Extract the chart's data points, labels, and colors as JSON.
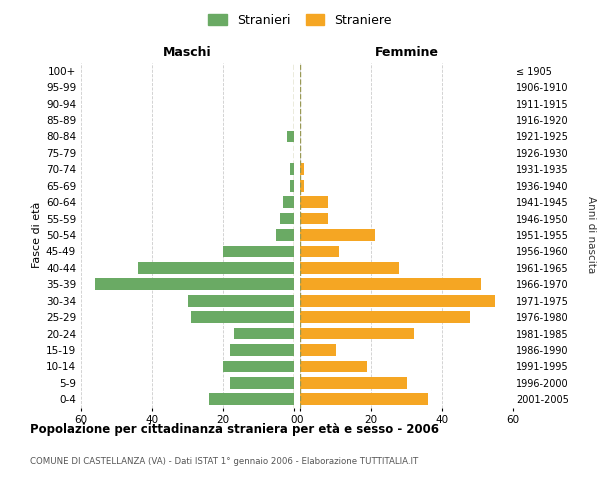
{
  "age_groups": [
    "0-4",
    "5-9",
    "10-14",
    "15-19",
    "20-24",
    "25-29",
    "30-34",
    "35-39",
    "40-44",
    "45-49",
    "50-54",
    "55-59",
    "60-64",
    "65-69",
    "70-74",
    "75-79",
    "80-84",
    "85-89",
    "90-94",
    "95-99",
    "100+"
  ],
  "birth_years": [
    "2001-2005",
    "1996-2000",
    "1991-1995",
    "1986-1990",
    "1981-1985",
    "1976-1980",
    "1971-1975",
    "1966-1970",
    "1961-1965",
    "1956-1960",
    "1951-1955",
    "1946-1950",
    "1941-1945",
    "1936-1940",
    "1931-1935",
    "1926-1930",
    "1921-1925",
    "1916-1920",
    "1911-1915",
    "1906-1910",
    "≤ 1905"
  ],
  "maschi": [
    24,
    18,
    20,
    18,
    17,
    29,
    30,
    56,
    44,
    20,
    5,
    4,
    3,
    1,
    1,
    0,
    2,
    0,
    0,
    0,
    0
  ],
  "femmine": [
    36,
    30,
    19,
    10,
    32,
    48,
    55,
    51,
    28,
    11,
    21,
    8,
    8,
    1,
    1,
    0,
    0,
    0,
    0,
    0,
    0
  ],
  "color_maschi": "#6aaa64",
  "color_femmine": "#f5a623",
  "title": "Popolazione per cittadinanza straniera per età e sesso - 2006",
  "subtitle": "COMUNE DI CASTELLANZA (VA) - Dati ISTAT 1° gennaio 2006 - Elaborazione TUTTITALIA.IT",
  "ylabel_left": "Fasce di età",
  "ylabel_right": "Anni di nascita",
  "header_left": "Maschi",
  "header_right": "Femmine",
  "legend_maschi": "Stranieri",
  "legend_femmine": "Straniere",
  "xlim": 60,
  "background_color": "#ffffff",
  "grid_color": "#cccccc"
}
